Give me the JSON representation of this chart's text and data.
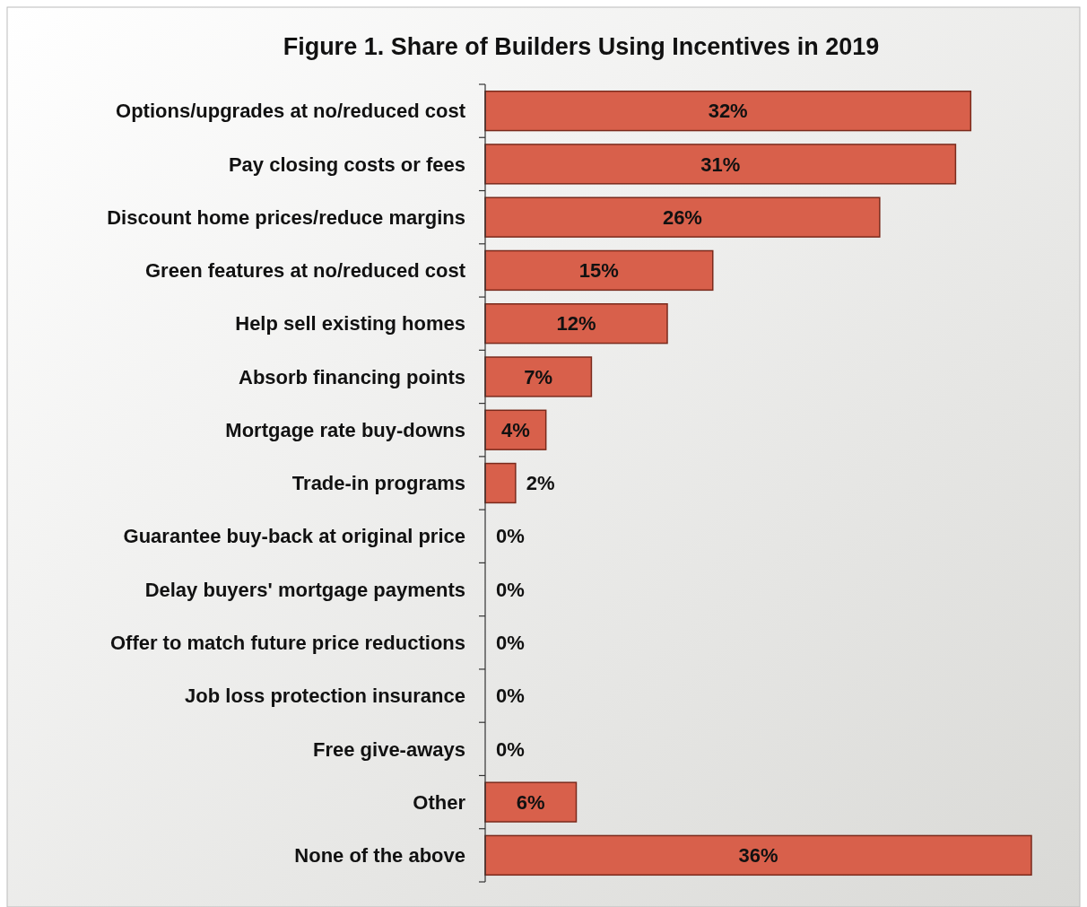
{
  "chart_data": {
    "type": "bar",
    "orientation": "horizontal",
    "title": "Figure 1. Share of Builders Using Incentives in 2019",
    "categories": [
      "Options/upgrades at no/reduced cost",
      "Pay closing costs or fees",
      "Discount home prices/reduce margins",
      "Green features at no/reduced cost",
      "Help sell existing homes",
      "Absorb financing points",
      "Mortgage rate buy-downs",
      "Trade-in programs",
      "Guarantee buy-back at original price",
      "Delay buyers' mortgage payments",
      "Offer to match future price reductions",
      "Job loss protection insurance",
      "Free give-aways",
      "Other",
      "None of the above"
    ],
    "values": [
      32,
      31,
      26,
      15,
      12,
      7,
      4,
      2,
      0,
      0,
      0,
      0,
      0,
      6,
      36
    ],
    "value_labels": [
      "32%",
      "31%",
      "26%",
      "15%",
      "12%",
      "7%",
      "4%",
      "2%",
      "0%",
      "0%",
      "0%",
      "0%",
      "0%",
      "6%",
      "36%"
    ],
    "color": "#d8604b"
  }
}
